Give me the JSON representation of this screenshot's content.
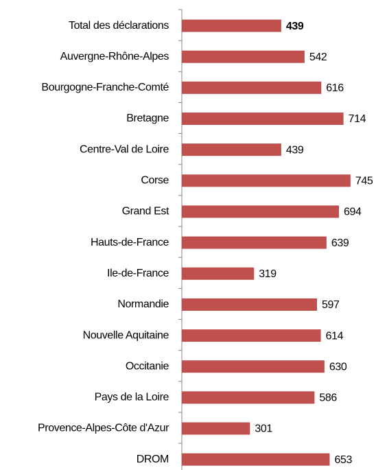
{
  "chart_data": {
    "type": "hbar",
    "categories": [
      "Total des déclarations",
      "Auvergne-Rhône-Alpes",
      "Bourgogne-Franche-Comté",
      "Bretagne",
      "Centre-Val de Loire",
      "Corse",
      "Grand Est",
      "Hauts-de-France",
      "Ile-de-France",
      "Normandie",
      "Nouvelle Aquitaine",
      "Occitanie",
      "Pays de la Loire",
      "Provence-Alpes-Côte d'Azur",
      "DROM"
    ],
    "values": [
      439,
      542,
      616,
      714,
      439,
      745,
      694,
      639,
      319,
      597,
      614,
      630,
      586,
      301,
      653
    ],
    "color": "#c0504d",
    "xlim": [
      0,
      800
    ]
  }
}
